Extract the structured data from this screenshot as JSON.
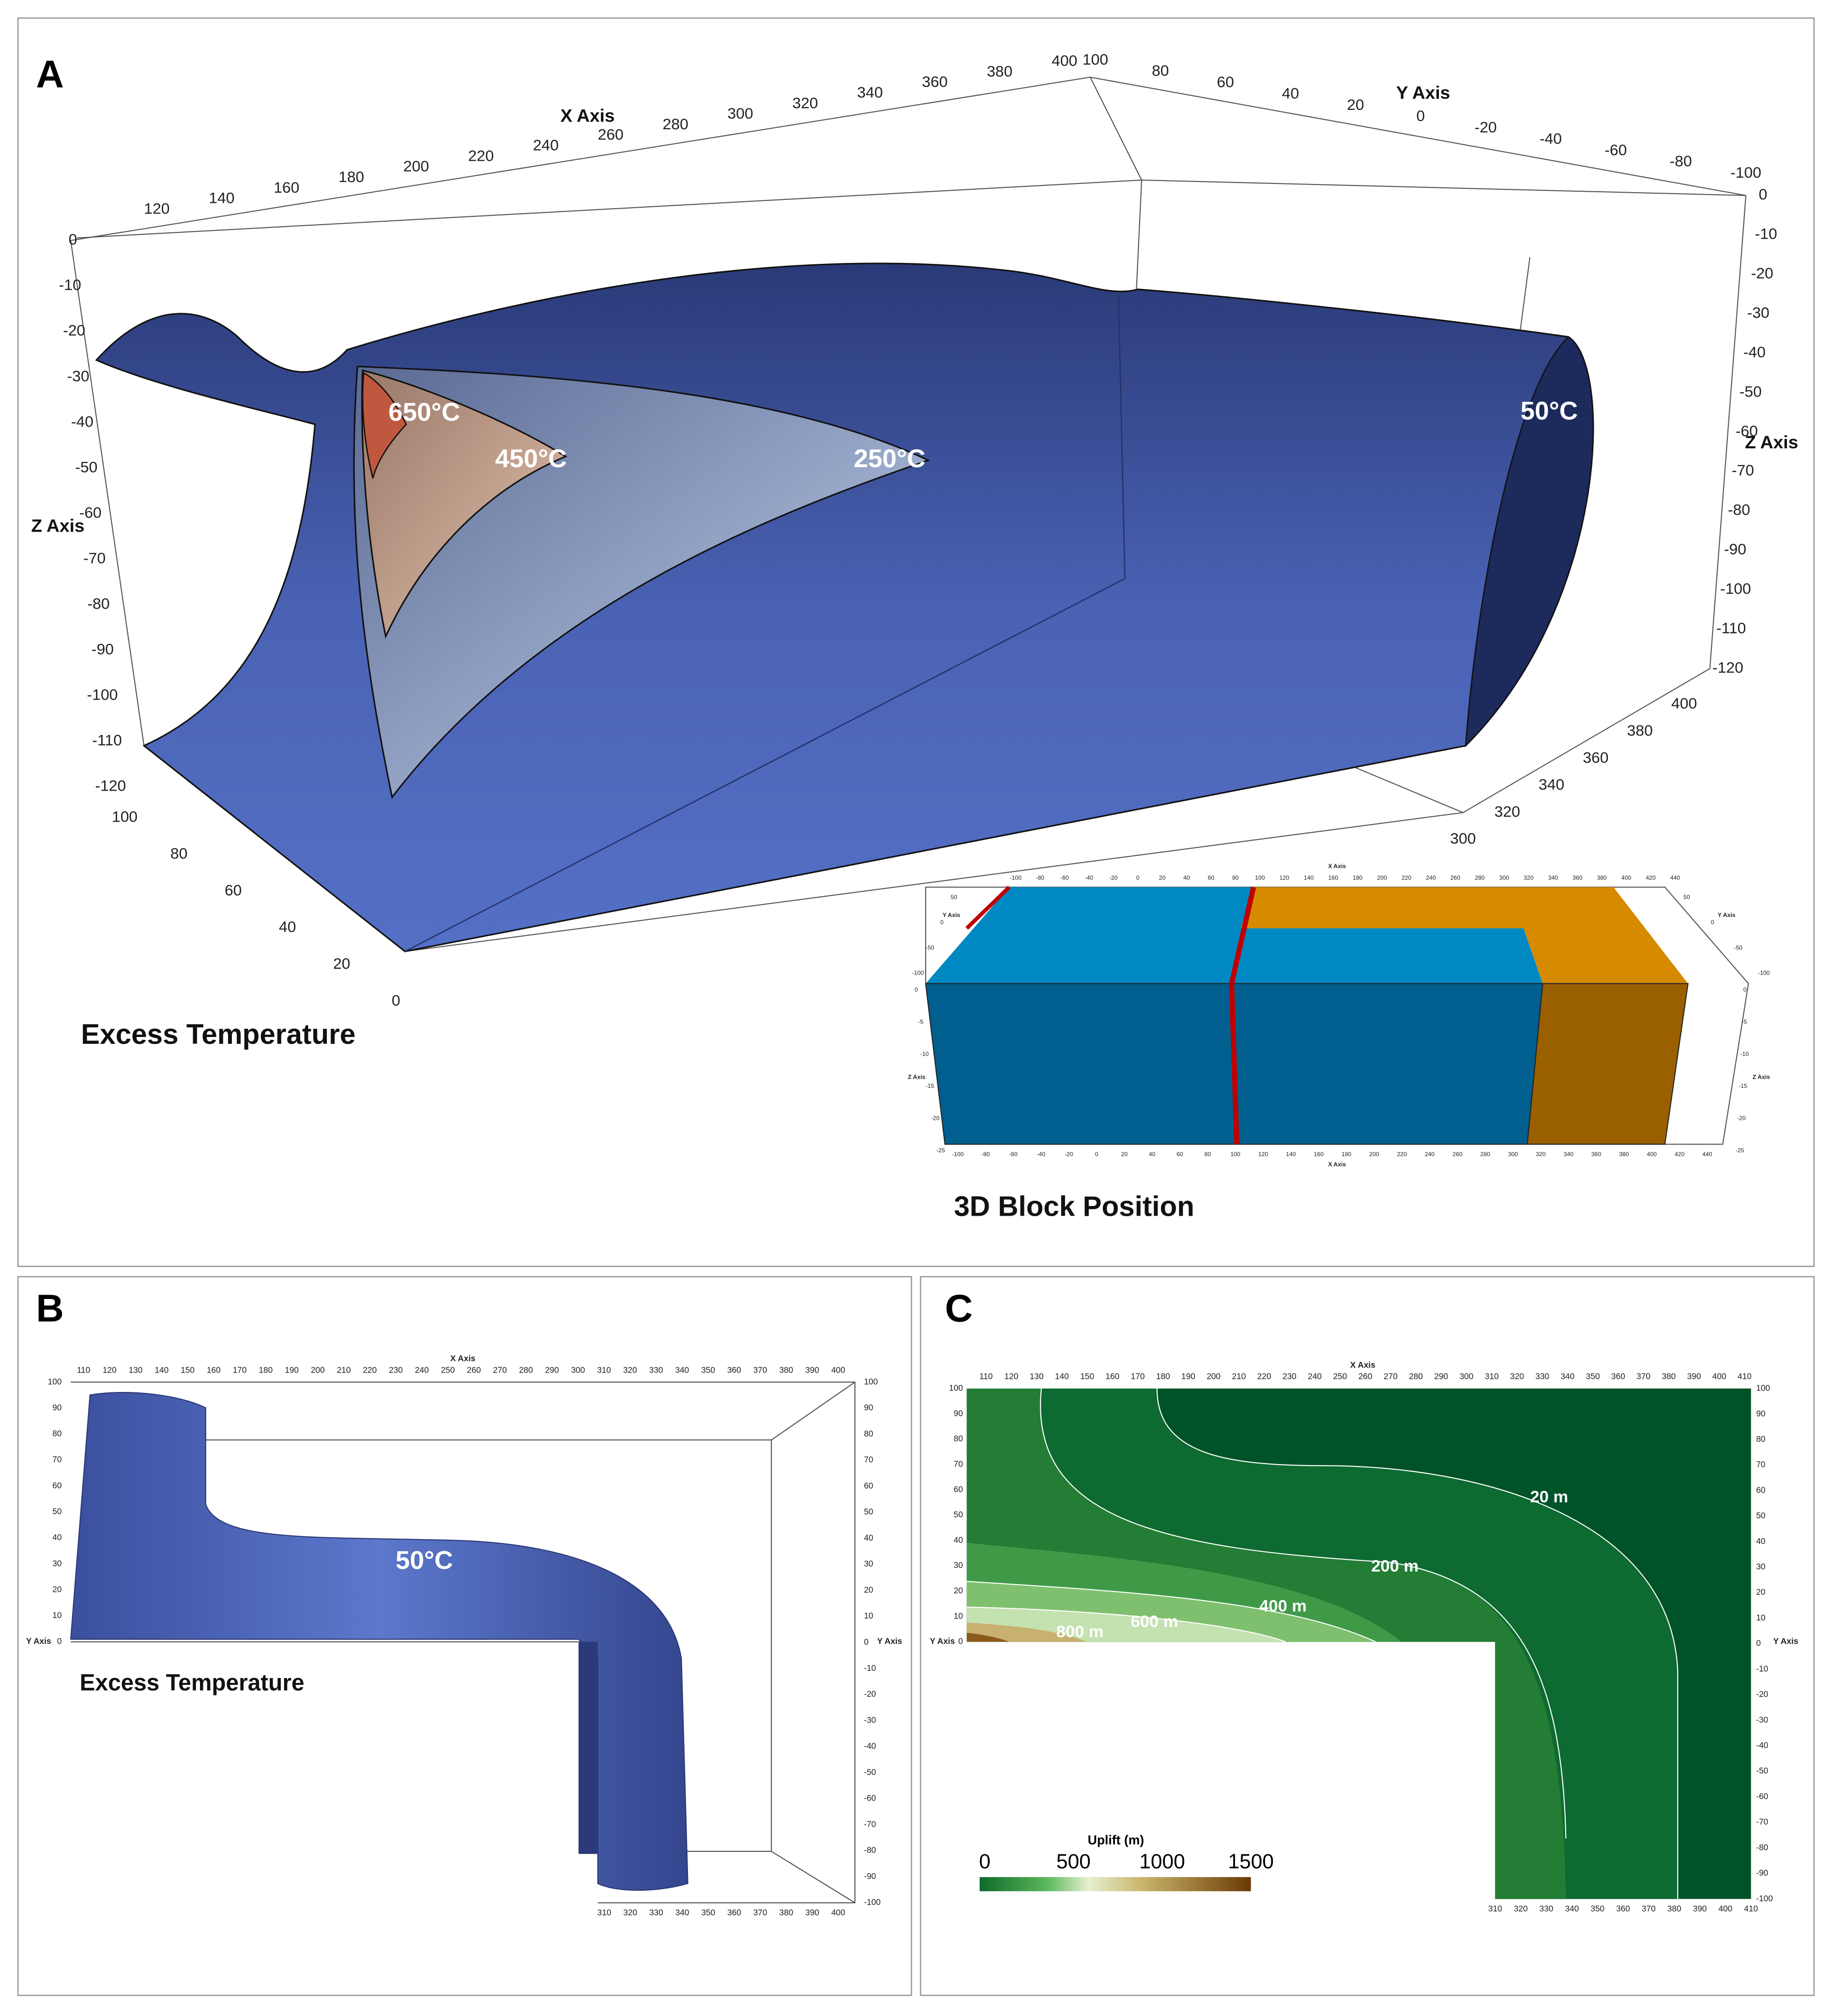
{
  "panel_a": {
    "label": "A",
    "x_axis_title": "X Axis",
    "y_axis_title": "Y Axis",
    "z_axis_title": "Z Axis",
    "x_ticks": [
      120,
      140,
      160,
      180,
      200,
      220,
      240,
      260,
      280,
      300,
      320,
      340,
      360,
      380,
      400
    ],
    "y_ticks_top": [
      100,
      80,
      60,
      40,
      20,
      0,
      -20,
      -40,
      -60,
      -80,
      -100
    ],
    "z_ticks_left": [
      0,
      -10,
      -20,
      -30,
      -40,
      -50,
      -60,
      -70,
      -80,
      -90,
      -100,
      -110,
      -120
    ],
    "z_ticks_right": [
      0,
      -10,
      -20,
      -30,
      -40,
      -50,
      -60,
      -70,
      -80,
      -90,
      -100,
      -110,
      -120
    ],
    "y_ticks_bottom_left": [
      100,
      80,
      60,
      40,
      20,
      0
    ],
    "y_ticks_bottom_right": [
      400,
      380,
      360,
      340,
      320,
      300
    ],
    "isotherms": [
      "650°C",
      "450°C",
      "250°C",
      "50°C"
    ],
    "caption": "Excess Temperature",
    "inset": {
      "caption": "3D Block Position",
      "x_axis_title": "X Axis",
      "y_axis_title": "Y Axis",
      "z_axis_title": "Z Axis",
      "x_ticks_top": [
        -100,
        -80,
        -60,
        -40,
        -20,
        0,
        20,
        40,
        60,
        80,
        100,
        120,
        140,
        160,
        180,
        200,
        220,
        240,
        260,
        280,
        300,
        320,
        340,
        360,
        380,
        400,
        420,
        440
      ],
      "x_ticks_bottom": [
        -100,
        -80,
        -60,
        -40,
        -20,
        0,
        20,
        40,
        60,
        80,
        100,
        120,
        140,
        160,
        180,
        200,
        220,
        240,
        260,
        280,
        300,
        320,
        340,
        360,
        380,
        400,
        420,
        440
      ],
      "y_ticks_left": [
        50,
        0,
        -50,
        -100
      ],
      "y_ticks_right": [
        50,
        0,
        -50,
        -100
      ],
      "z_ticks_left": [
        0,
        -5,
        -10,
        -15,
        -20,
        -25
      ],
      "z_ticks_right": [
        0,
        -5,
        -10,
        -15,
        -20,
        -25
      ]
    }
  },
  "panel_b": {
    "label": "B",
    "x_axis_title": "X Axis",
    "y_axis_title": "Y Axis",
    "x_ticks_top": [
      110,
      120,
      130,
      140,
      150,
      160,
      170,
      180,
      190,
      200,
      210,
      220,
      230,
      240,
      250,
      260,
      270,
      280,
      290,
      300,
      310,
      320,
      330,
      340,
      350,
      360,
      370,
      380,
      390,
      400
    ],
    "x_ticks_bottom": [
      310,
      320,
      330,
      340,
      350,
      360,
      370,
      380,
      390,
      400
    ],
    "y_ticks_left": [
      100,
      90,
      80,
      70,
      60,
      50,
      40,
      30,
      20,
      10,
      0
    ],
    "y_ticks_right": [
      100,
      90,
      80,
      70,
      60,
      50,
      40,
      30,
      20,
      10,
      0,
      -10,
      -20,
      -30,
      -40,
      -50,
      -60,
      -70,
      -80,
      -90,
      -100
    ],
    "isotherm": "50°C",
    "caption": "Excess Temperature"
  },
  "panel_c": {
    "label": "C",
    "x_axis_title": "X Axis",
    "y_axis_title": "Y Axis",
    "x_ticks_top": [
      110,
      120,
      130,
      140,
      150,
      160,
      170,
      180,
      190,
      200,
      210,
      220,
      230,
      240,
      250,
      260,
      270,
      280,
      290,
      300,
      310,
      320,
      330,
      340,
      350,
      360,
      370,
      380,
      390,
      400,
      410
    ],
    "x_ticks_bottom": [
      310,
      320,
      330,
      340,
      350,
      360,
      370,
      380,
      390,
      400,
      410
    ],
    "y_ticks_left": [
      100,
      90,
      80,
      70,
      60,
      50,
      40,
      30,
      20,
      10,
      0
    ],
    "y_ticks_right": [
      100,
      90,
      80,
      70,
      60,
      50,
      40,
      30,
      20,
      10,
      0,
      -10,
      -20,
      -30,
      -40,
      -50,
      -60,
      -70,
      -80,
      -90,
      -100
    ],
    "contours": [
      "20 m",
      "200 m",
      "400 m",
      "600 m",
      "800 m"
    ],
    "colorbar": {
      "title": "Uplift (m)",
      "ticks": [
        0,
        500,
        1000,
        1500
      ]
    }
  }
}
